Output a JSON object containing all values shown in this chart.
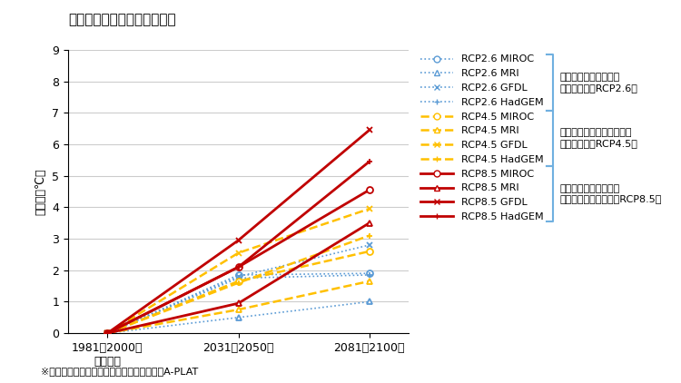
{
  "title": "神奈川県　将来の年平均気温",
  "ylabel": "変化量（℃）",
  "x_labels": [
    "1981〜2000年\n基準期間",
    "2031〜2050年",
    "2081〜2100年"
  ],
  "x_positions": [
    0,
    1,
    2
  ],
  "ylim": [
    0,
    9
  ],
  "yticks": [
    0,
    1,
    2,
    3,
    4,
    5,
    6,
    7,
    8,
    9
  ],
  "series": [
    {
      "label": "RCP2.6 MIROC",
      "color": "#5B9BD5",
      "linestyle": "dotted",
      "marker": "o",
      "lw": 1.2,
      "ms": 5,
      "values": [
        0,
        1.85,
        1.9
      ]
    },
    {
      "label": "RCP2.6 MRI",
      "color": "#5B9BD5",
      "linestyle": "dotted",
      "marker": "^",
      "lw": 1.2,
      "ms": 5,
      "values": [
        0,
        0.5,
        1.0
      ]
    },
    {
      "label": "RCP2.6 GFDL",
      "color": "#5B9BD5",
      "linestyle": "dotted",
      "marker": "x",
      "lw": 1.2,
      "ms": 5,
      "values": [
        0,
        1.8,
        2.8
      ]
    },
    {
      "label": "RCP2.6 HadGEM",
      "color": "#5B9BD5",
      "linestyle": "dotted",
      "marker": "+",
      "lw": 1.2,
      "ms": 5,
      "values": [
        0,
        1.75,
        1.85
      ]
    },
    {
      "label": "RCP4.5 MIROC",
      "color": "#FFC000",
      "linestyle": "dashed",
      "marker": "o",
      "lw": 1.8,
      "ms": 5,
      "values": [
        0,
        1.65,
        2.6
      ]
    },
    {
      "label": "RCP4.5 MRI",
      "color": "#FFC000",
      "linestyle": "dashed",
      "marker": "^",
      "lw": 1.8,
      "ms": 5,
      "values": [
        0,
        0.75,
        1.65
      ]
    },
    {
      "label": "RCP4.5 GFDL",
      "color": "#FFC000",
      "linestyle": "dashed",
      "marker": "x",
      "lw": 1.8,
      "ms": 5,
      "values": [
        0,
        2.55,
        3.95
      ]
    },
    {
      "label": "RCP4.5 HadGEM",
      "color": "#FFC000",
      "linestyle": "dashed",
      "marker": "+",
      "lw": 1.8,
      "ms": 5,
      "values": [
        0,
        1.6,
        3.1
      ]
    },
    {
      "label": "RCP8.5 MIROC",
      "color": "#C00000",
      "linestyle": "solid",
      "marker": "o",
      "lw": 2.0,
      "ms": 5,
      "values": [
        0,
        2.1,
        4.55
      ]
    },
    {
      "label": "RCP8.5 MRI",
      "color": "#C00000",
      "linestyle": "solid",
      "marker": "^",
      "lw": 2.0,
      "ms": 5,
      "values": [
        0,
        0.95,
        3.5
      ]
    },
    {
      "label": "RCP8.5 GFDL",
      "color": "#C00000",
      "linestyle": "solid",
      "marker": "x",
      "lw": 2.0,
      "ms": 5,
      "values": [
        0,
        2.95,
        6.45
      ]
    },
    {
      "label": "RCP8.5 HadGEM",
      "color": "#C00000",
      "linestyle": "solid",
      "marker": "+",
      "lw": 2.0,
      "ms": 5,
      "values": [
        0,
        2.1,
        5.45
      ]
    }
  ],
  "group_labels": [
    "厳しい気候変動対策を\n取った場合（RCP2.6）",
    "一定程度の気候変動対策を\n取った場合（RCP4.5）",
    "有効な気候変動対策が\n取られなかった場合（RCP8.5）"
  ],
  "bracket_color": "#70B0E0",
  "note_text": "※出典　気候変動適応情報プラットフォームA-PLAT",
  "bg_color": "#ffffff",
  "grid_color": "#cccccc",
  "title_fontsize": 11,
  "axis_fontsize": 9,
  "legend_fontsize": 8,
  "note_fontsize": 8
}
